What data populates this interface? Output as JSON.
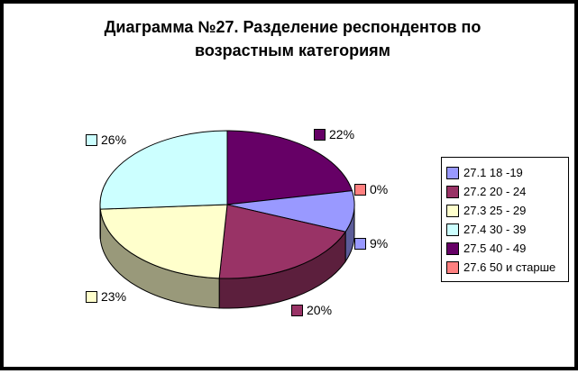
{
  "window": {
    "background": "#FFFFFF",
    "border_color": "#000000"
  },
  "chart_data": {
    "type": "pie",
    "effect_3d": true,
    "title": "Диаграмма №27. Разделение респондентов по возрастным категориям",
    "legend_position": "right",
    "direction": "clockwise",
    "start_angle_deg": 0,
    "outline_color": "#000000",
    "series": [
      {
        "name": "27.1 18 -19",
        "value": 9,
        "label": "9%",
        "color": "#9999FF"
      },
      {
        "name": "27.2 20 - 24",
        "value": 20,
        "label": "20%",
        "color": "#993366"
      },
      {
        "name": "27.3 25 - 29",
        "value": 23,
        "label": "23%",
        "color": "#FFFFCC"
      },
      {
        "name": "27.4 30 - 39",
        "value": 26,
        "label": "26%",
        "color": "#CCFFFF"
      },
      {
        "name": "27.5 40 - 49",
        "value": 22,
        "label": "22%",
        "color": "#660066"
      },
      {
        "name": "27.6 50 и старше",
        "value": 0,
        "label": "0%",
        "color": "#FF8080"
      }
    ],
    "slice_order_clockwise_from_top": [
      4,
      5,
      0,
      1,
      2,
      3
    ]
  }
}
